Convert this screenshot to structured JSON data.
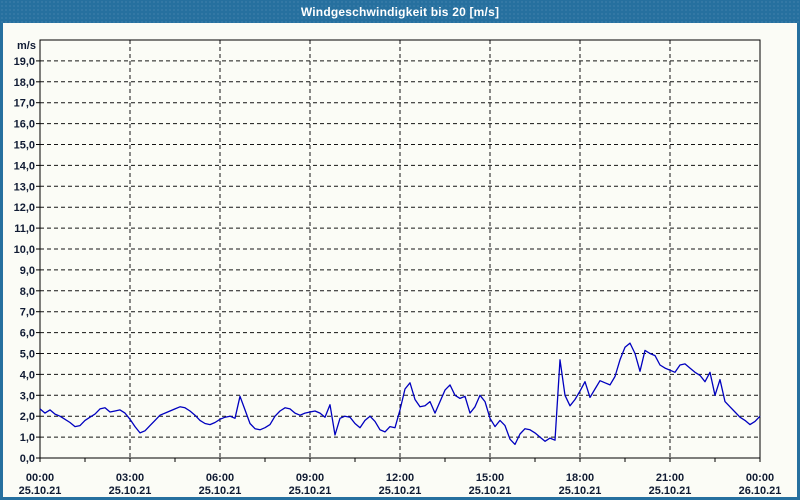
{
  "window": {
    "title": "Windgeschwindigkeit bis 20 [m/s]",
    "colors": {
      "titlebar": "#26709f",
      "border": "#26709f",
      "background": "#fbfcf6",
      "label_text": "#101b33",
      "line": "#0000bf",
      "grid": "#151515",
      "frame": "#000000"
    }
  },
  "chart_data": {
    "type": "line",
    "title": "Windgeschwindigkeit bis 20 [m/s]",
    "ylabel": "m/s",
    "xlabel": "",
    "ylim": [
      0,
      20
    ],
    "xlim_hours": [
      0,
      24
    ],
    "grid": "dashed",
    "legend_position": "none",
    "y_tick_labels": [
      "0,0",
      "1,0",
      "2,0",
      "3,0",
      "4,0",
      "5,0",
      "6,0",
      "7,0",
      "8,0",
      "9,0",
      "10,0",
      "11,0",
      "12,0",
      "13,0",
      "14,0",
      "15,0",
      "16,0",
      "17,0",
      "18,0",
      "19,0"
    ],
    "x_ticks": [
      {
        "hour": 0,
        "time": "00:00",
        "date": "25.10.21"
      },
      {
        "hour": 3,
        "time": "03:00",
        "date": "25.10.21"
      },
      {
        "hour": 6,
        "time": "06:00",
        "date": "25.10.21"
      },
      {
        "hour": 9,
        "time": "09:00",
        "date": "25.10.21"
      },
      {
        "hour": 12,
        "time": "12:00",
        "date": "25.10.21"
      },
      {
        "hour": 15,
        "time": "15:00",
        "date": "25.10.21"
      },
      {
        "hour": 18,
        "time": "18:00",
        "date": "25.10.21"
      },
      {
        "hour": 21,
        "time": "21:00",
        "date": "25.10.21"
      },
      {
        "hour": 24,
        "time": "00:00",
        "date": "26.10.21"
      }
    ],
    "minor_x_tick_hours": 1.5,
    "series": [
      {
        "name": "Windgeschwindigkeit",
        "unit": "m/s",
        "start_hour": 0,
        "step_minutes": 10,
        "values": [
          2.35,
          2.15,
          2.3,
          2.1,
          2.0,
          1.85,
          1.7,
          1.5,
          1.55,
          1.8,
          1.95,
          2.1,
          2.35,
          2.4,
          2.2,
          2.25,
          2.3,
          2.15,
          1.85,
          1.5,
          1.2,
          1.3,
          1.55,
          1.8,
          2.05,
          2.15,
          2.25,
          2.35,
          2.45,
          2.4,
          2.25,
          2.05,
          1.8,
          1.65,
          1.6,
          1.7,
          1.85,
          1.95,
          2.0,
          1.9,
          2.95,
          2.3,
          1.65,
          1.4,
          1.35,
          1.45,
          1.6,
          2.0,
          2.25,
          2.4,
          2.35,
          2.15,
          2.05,
          2.15,
          2.2,
          2.25,
          2.15,
          1.95,
          2.55,
          1.1,
          1.9,
          2.0,
          1.95,
          1.65,
          1.45,
          1.8,
          2.0,
          1.75,
          1.35,
          1.25,
          1.5,
          1.45,
          2.3,
          3.3,
          3.6,
          2.8,
          2.45,
          2.5,
          2.7,
          2.15,
          2.7,
          3.25,
          3.5,
          3.0,
          2.85,
          2.95,
          2.15,
          2.45,
          3.0,
          2.7,
          1.9,
          1.5,
          1.8,
          1.55,
          0.9,
          0.65,
          1.15,
          1.4,
          1.35,
          1.2,
          1.0,
          0.8,
          0.95,
          0.85,
          4.7,
          3.0,
          2.5,
          2.8,
          3.2,
          3.65,
          2.9,
          3.3,
          3.7,
          3.6,
          3.5,
          3.9,
          4.7,
          5.3,
          5.5,
          5.0,
          4.15,
          5.15,
          5.0,
          4.9,
          4.45,
          4.3,
          4.2,
          4.1,
          4.45,
          4.5,
          4.3,
          4.1,
          3.95,
          3.65,
          4.1,
          3.0,
          3.75,
          2.7,
          2.45,
          2.2,
          1.95,
          1.8,
          1.6,
          1.75,
          2.0
        ]
      }
    ]
  }
}
